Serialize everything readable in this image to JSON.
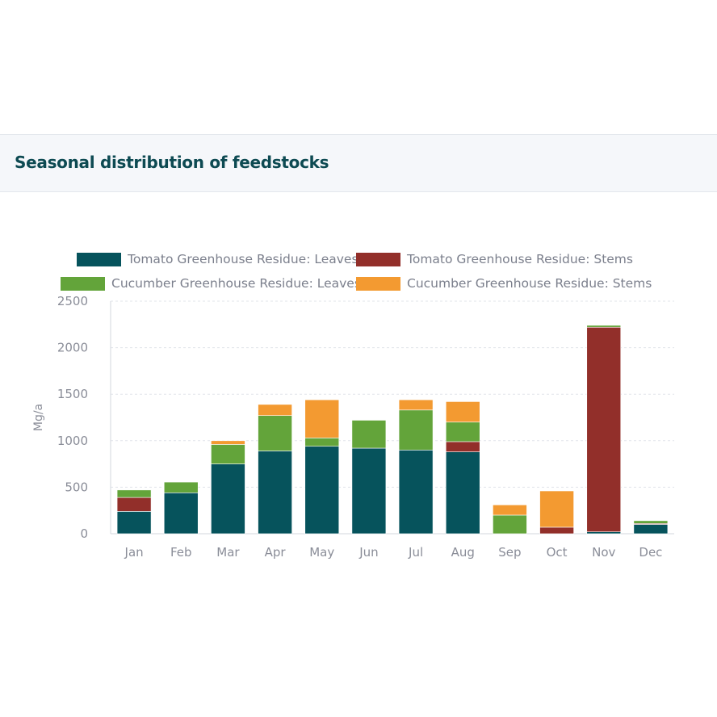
{
  "panel": {
    "title": "Seasonal distribution of feedstocks"
  },
  "chart_data": {
    "type": "bar",
    "stacked": true,
    "ylabel": "Mg/a",
    "ylim": [
      0,
      2500
    ],
    "yticks": [
      0,
      500,
      1000,
      1500,
      2000,
      2500
    ],
    "grid": true,
    "legend_position": "top",
    "categories": [
      "Jan",
      "Feb",
      "Mar",
      "Apr",
      "May",
      "Jun",
      "Jul",
      "Aug",
      "Sep",
      "Oct",
      "Nov",
      "Dec"
    ],
    "series": [
      {
        "name": "Tomato Greenhouse Residue: Leaves",
        "color": "#06535c",
        "values": [
          240,
          440,
          750,
          890,
          940,
          920,
          900,
          880,
          0,
          0,
          20,
          100
        ]
      },
      {
        "name": "Tomato Greenhouse Residue: Stems",
        "color": "#922f2a",
        "values": [
          150,
          0,
          0,
          0,
          0,
          0,
          0,
          110,
          0,
          70,
          2200,
          10
        ]
      },
      {
        "name": "Cucumber Greenhouse Residue: Leaves",
        "color": "#63a43a",
        "values": [
          80,
          115,
          210,
          380,
          90,
          300,
          430,
          210,
          200,
          0,
          20,
          30
        ]
      },
      {
        "name": "Cucumber Greenhouse Residue: Stems",
        "color": "#f39a31",
        "values": [
          0,
          0,
          40,
          120,
          410,
          0,
          110,
          220,
          110,
          390,
          0,
          0
        ]
      }
    ]
  }
}
